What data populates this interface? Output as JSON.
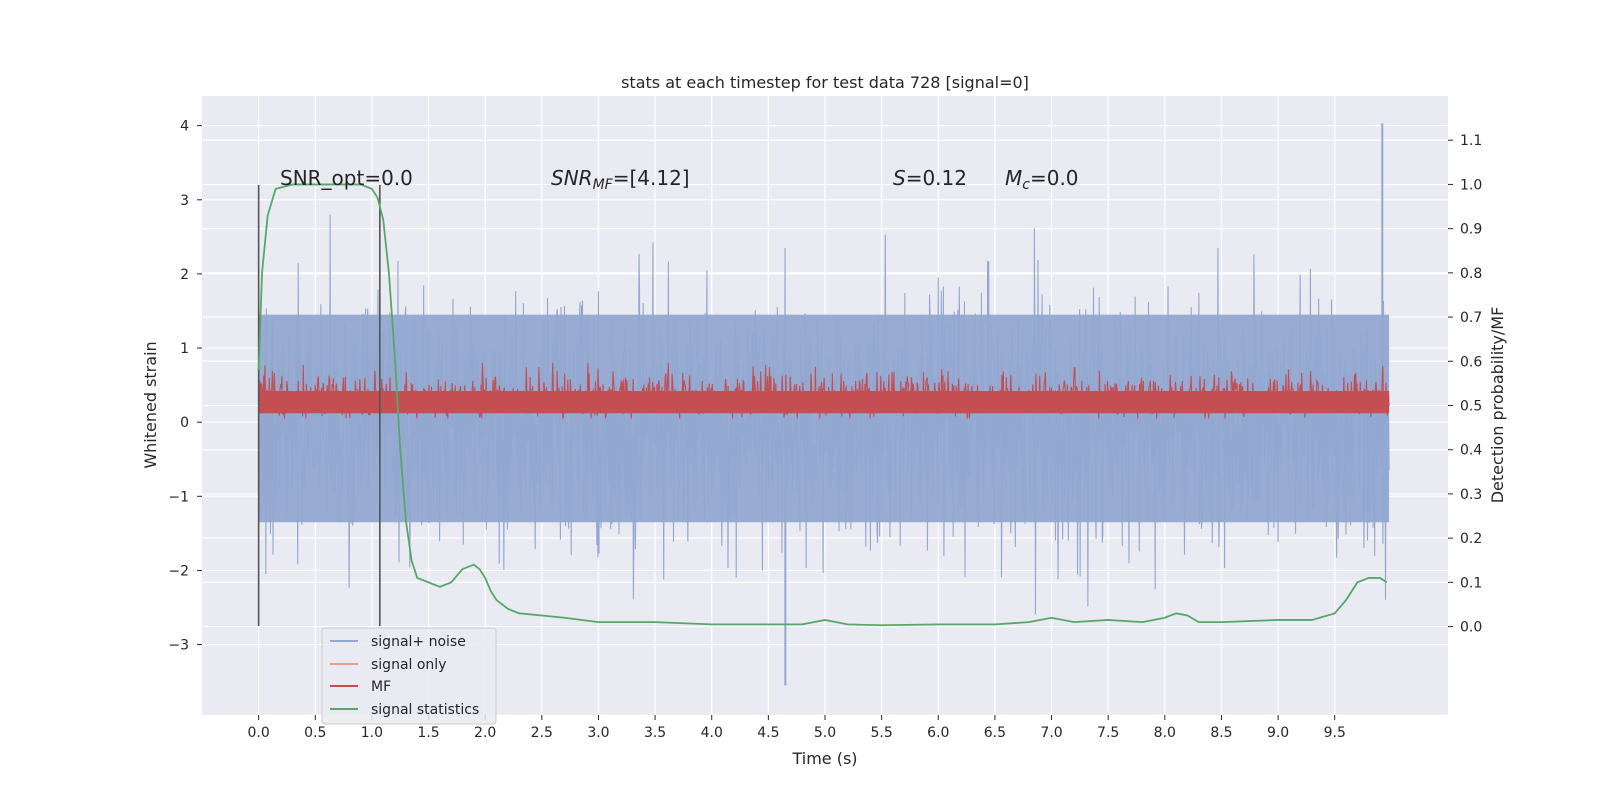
{
  "chart_data": {
    "type": "line",
    "title": "stats at each timestep for test data 728 [signal=0]",
    "xlabel": "Time (s)",
    "ylabel": "Whitened strain",
    "y2label": "Detection probability/MF",
    "xlim": [
      -0.5,
      10.5
    ],
    "ylim": [
      -3.95,
      4.4
    ],
    "y2lim": [
      -0.2,
      1.2
    ],
    "xticks": [
      "0.0",
      "0.5",
      "1.0",
      "1.5",
      "2.0",
      "2.5",
      "3.0",
      "3.5",
      "4.0",
      "4.5",
      "5.0",
      "5.5",
      "6.0",
      "6.5",
      "7.0",
      "7.5",
      "8.0",
      "8.5",
      "9.0",
      "9.5"
    ],
    "yticks": [
      "4",
      "3",
      "2",
      "1",
      "0",
      "−1",
      "−2",
      "−3"
    ],
    "y2ticks": [
      "1.1",
      "1.0",
      "0.9",
      "0.8",
      "0.7",
      "0.6",
      "0.5",
      "0.4",
      "0.3",
      "0.2",
      "0.1",
      "0.0"
    ],
    "grid": true,
    "legend_placement": "lower-left",
    "annotations": {
      "snr_opt": "SNR_opt=0.0",
      "snr_mf_main": "SNR",
      "snr_mf_sub": "MF",
      "snr_mf_value": "=[4.12]",
      "s_main": "S",
      "s_value": "=0.12",
      "mc_main": "M",
      "mc_sub": "c",
      "mc_value": "=0.0"
    },
    "vlines_x": [
      0.0,
      1.07
    ],
    "series": [
      {
        "name": "signal+ noise",
        "axis": "left",
        "color": "#92a8d1",
        "style": "noise band",
        "center": 0.0,
        "x_range": [
          0.0,
          9.98
        ],
        "envelope_low": -2.6,
        "envelope_high": 2.8,
        "extreme_max": 4.03,
        "extreme_min": -3.55
      },
      {
        "name": "signal only",
        "axis": "left",
        "color": "#e8a08a",
        "values": []
      },
      {
        "name": "MF",
        "axis": "left",
        "color": "#c44e52",
        "style": "noise band",
        "x_range": [
          0.0,
          9.98
        ],
        "band_low": 0.0,
        "band_high": 0.8
      },
      {
        "name": "signal statistics",
        "axis": "right",
        "color": "#55a868",
        "x": [
          0.0,
          0.03,
          0.08,
          0.15,
          0.3,
          0.6,
          0.9,
          1.0,
          1.05,
          1.1,
          1.15,
          1.2,
          1.25,
          1.3,
          1.35,
          1.4,
          1.5,
          1.6,
          1.7,
          1.8,
          1.9,
          1.95,
          2.0,
          2.05,
          2.1,
          2.2,
          2.3,
          2.5,
          2.7,
          3.0,
          3.5,
          4.0,
          4.5,
          4.8,
          5.0,
          5.2,
          5.5,
          6.0,
          6.5,
          6.8,
          7.0,
          7.2,
          7.5,
          7.8,
          8.0,
          8.1,
          8.2,
          8.3,
          8.5,
          9.0,
          9.3,
          9.5,
          9.6,
          9.7,
          9.8,
          9.9,
          9.96
        ],
        "values": [
          0.58,
          0.8,
          0.93,
          0.99,
          1.0,
          1.0,
          1.0,
          0.99,
          0.97,
          0.92,
          0.8,
          0.62,
          0.4,
          0.24,
          0.15,
          0.11,
          0.1,
          0.09,
          0.1,
          0.13,
          0.14,
          0.13,
          0.11,
          0.08,
          0.06,
          0.04,
          0.03,
          0.025,
          0.02,
          0.01,
          0.01,
          0.005,
          0.005,
          0.005,
          0.015,
          0.005,
          0.003,
          0.005,
          0.005,
          0.01,
          0.02,
          0.01,
          0.015,
          0.01,
          0.02,
          0.03,
          0.025,
          0.01,
          0.01,
          0.015,
          0.015,
          0.03,
          0.06,
          0.1,
          0.11,
          0.11,
          0.1
        ]
      }
    ]
  }
}
